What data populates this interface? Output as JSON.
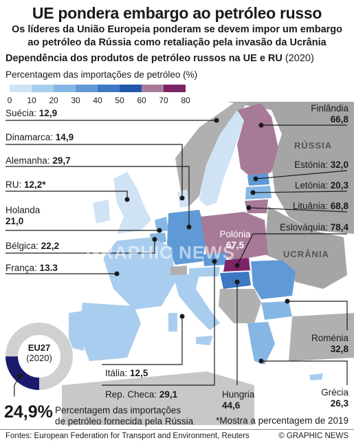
{
  "header": {
    "title": "UE pondera embargo ao petróleo russo",
    "subtitle_line1": "Os líderes da União Europeia ponderam se devem impor um embargo",
    "subtitle_line2": "ao petróleo da Rússia como retaliação pela invasão da Ucrânia",
    "subhead": "Dependência dos produtos de petróleo russos na UE e RU",
    "subhead_year": "(2020)"
  },
  "legend": {
    "title": "Percentagem das importações de petróleo (%)",
    "ticks": [
      "0",
      "10",
      "20",
      "30",
      "40",
      "50",
      "60",
      "70",
      "80"
    ],
    "colors": [
      "#cfe3f5",
      "#a9cdee",
      "#86b7e4",
      "#5f9ad6",
      "#3c78c4",
      "#2156a8",
      "#a77a98",
      "#7d2467"
    ]
  },
  "labels": {
    "suecia": {
      "name": "Suécia:",
      "value": "12,9"
    },
    "dinamarca": {
      "name": "Dinamarca:",
      "value": "14,9"
    },
    "alemanha": {
      "name": "Alemanha:",
      "value": "29,7"
    },
    "ru": {
      "name": "RU:",
      "value": "12,2*"
    },
    "holanda": {
      "name": "Holanda",
      "value": "21,0"
    },
    "belgica": {
      "name": "Bélgica:",
      "value": "22,2"
    },
    "franca": {
      "name": "França:",
      "value": "13.3"
    },
    "italia": {
      "name": "Itália:",
      "value": "12,5"
    },
    "repcheca": {
      "name": "Rep. Checa:",
      "value": "29,1"
    },
    "hungria": {
      "name": "Hungria",
      "value": "44,6"
    },
    "grecia": {
      "name": "Grécia",
      "value": "26,3"
    },
    "romenia": {
      "name": "Roménia",
      "value": "32,8"
    },
    "finlandia": {
      "name": "Finlândia",
      "value": "66,8"
    },
    "estonia": {
      "name": "Estónia:",
      "value": "32,0"
    },
    "letonia": {
      "name": "Letónia:",
      "value": "20,3"
    },
    "lituania": {
      "name": "Lituânia:",
      "value": "68,8"
    },
    "eslovaquia": {
      "name": "Eslováquia:",
      "value": "78,4"
    },
    "polonia": {
      "name": "Polónia",
      "value": "67,5"
    }
  },
  "regions": {
    "russia": "RÚSSIA",
    "ucrania": "UCRÂNIA"
  },
  "watermark": "GRAPHIC NEWS",
  "eu27": {
    "label": "EU27",
    "year": "(2020)",
    "value": "24,9%",
    "fraction": 0.249,
    "description_line1": "Percentagem das importações",
    "description_line2": "de petróleo fornecida pela Rússia"
  },
  "note": "*Mostra a percentagem de 2019",
  "footer": {
    "sources": "Fontes: European Federation for Transport and Environment, Reuters",
    "credit": "© GRAPHIC NEWS"
  }
}
